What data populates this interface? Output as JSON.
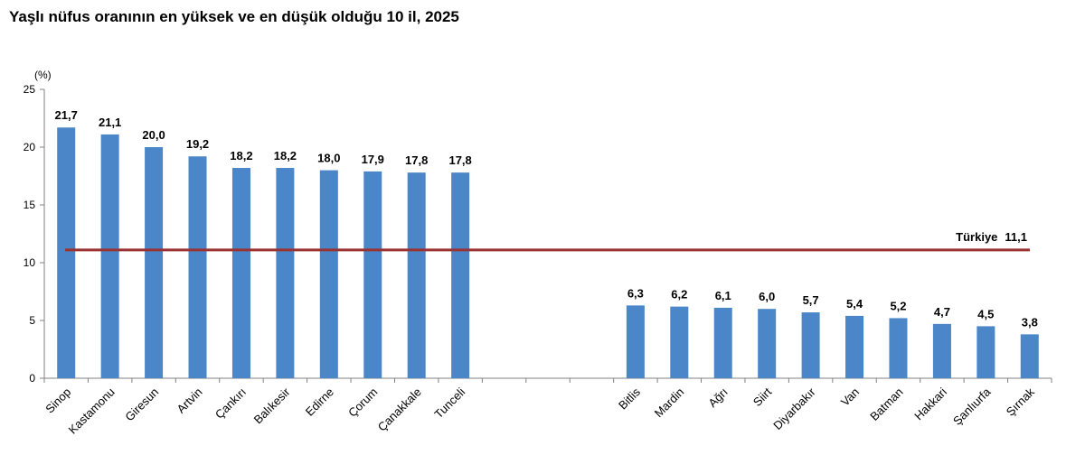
{
  "chart_data": {
    "type": "bar",
    "title": "Yaşlı nüfus oranının en yüksek ve en düşük olduğu 10 il, 2025",
    "ylabel": "(%)",
    "ylim": [
      0,
      25
    ],
    "yticks": [
      "0",
      "5",
      "10",
      "15",
      "20",
      "25"
    ],
    "series_color": "#4A86C8",
    "categories": [
      "Sinop",
      "Kastamonu",
      "Giresun",
      "Artvin",
      "Çankırı",
      "Balıkesir",
      "Edirne",
      "Çorum",
      "Çanakkale",
      "Tunceli",
      "",
      "",
      "",
      "Bitlis",
      "Mardin",
      "Ağrı",
      "Siirt",
      "Diyarbakır",
      "Van",
      "Batman",
      "Hakkari",
      "Şanlıurfa",
      "Şırnak"
    ],
    "values": [
      21.7,
      21.1,
      20.0,
      19.2,
      18.2,
      18.2,
      18.0,
      17.9,
      17.8,
      17.8,
      null,
      null,
      null,
      6.3,
      6.2,
      6.1,
      6.0,
      5.7,
      5.4,
      5.2,
      4.7,
      4.5,
      3.8
    ],
    "value_labels": [
      "21,7",
      "21,1",
      "20,0",
      "19,2",
      "18,2",
      "18,2",
      "18,0",
      "17,9",
      "17,8",
      "17,8",
      "",
      "",
      "",
      "6,3",
      "6,2",
      "6,1",
      "6,0",
      "5,7",
      "5,4",
      "5,2",
      "4,7",
      "4,5",
      "3,8"
    ],
    "reference_line": {
      "label": "Türkiye",
      "value": 11.1,
      "value_label": "11,1",
      "color": "#993333"
    }
  }
}
